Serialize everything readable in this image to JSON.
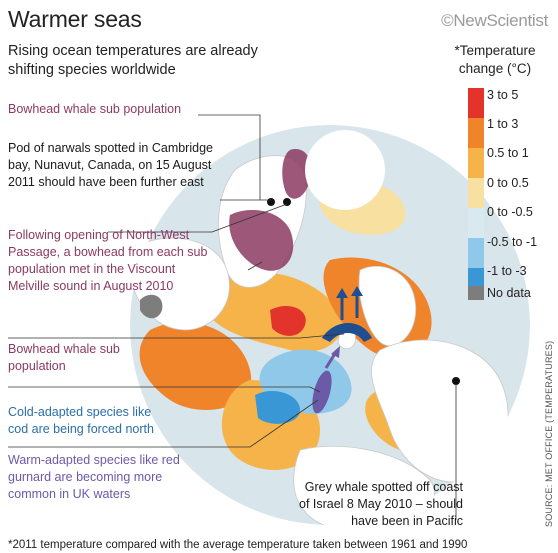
{
  "header": {
    "title": "Warmer seas",
    "logo_text": "©NewScientist",
    "subtitle": "Rising ocean temperatures are already shifting species worldwide"
  },
  "legend": {
    "title": "*Temperature change (°C)",
    "items": [
      {
        "label": "3 to 5",
        "color": "#e2342b"
      },
      {
        "label": "1 to 3",
        "color": "#f0842b"
      },
      {
        "label": "0.5 to 1",
        "color": "#f6b34a"
      },
      {
        "label": "0 to 0.5",
        "color": "#f7e0a0"
      },
      {
        "label": "0 to -0.5",
        "color": "#d9e9f0"
      },
      {
        "label": "-0.5 to -1",
        "color": "#8fc8e8"
      },
      {
        "label": "-1 to -3",
        "color": "#3a97d6"
      }
    ],
    "nodata_label": "No data",
    "nodata_color": "#7d7d7d"
  },
  "annotations": {
    "bowhead_top": "Bowhead whale sub population",
    "narwhals": "Pod of narwals spotted in Cambridge bay, Nunavut, Canada, on 15 August 2011 should have been further east",
    "northwest": "Following opening of North-West Passage, a bowhead from each sub population met in the Viscount Melville sound in August 2010",
    "bowhead_bottom": "Bowhead whale sub population",
    "cod": "Cold-adapted species like cod are being forced north",
    "gurnard": "Warm-adapted species like red gurnard are becoming more common in UK waters",
    "grey_whale": "Grey whale spotted off coast of Israel 8 May 2010 – should have been in Pacific"
  },
  "footnote": "*2011 temperature compared with the average temperature taken between 1961 and 1990",
  "source": "SOURCE: MET OFFICE (TEMPERATURES)"
}
